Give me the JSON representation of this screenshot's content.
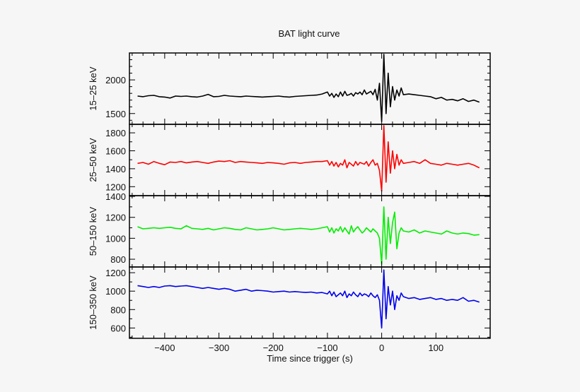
{
  "chart_data": {
    "type": "line",
    "title": "BAT light curve",
    "xlabel": "Time since trigger (s)",
    "xlim": [
      -465,
      200
    ],
    "xticks": [
      -400,
      -300,
      -200,
      -100,
      0,
      100
    ],
    "xtick_labels": [
      "−400",
      "−300",
      "−200",
      "−100",
      "0",
      "100"
    ],
    "grid": false,
    "x": [
      -450,
      -440,
      -430,
      -420,
      -410,
      -400,
      -390,
      -380,
      -370,
      -360,
      -350,
      -340,
      -330,
      -320,
      -310,
      -300,
      -290,
      -280,
      -270,
      -260,
      -250,
      -240,
      -230,
      -220,
      -210,
      -200,
      -190,
      -180,
      -170,
      -160,
      -150,
      -140,
      -130,
      -120,
      -110,
      -100,
      -96,
      -92,
      -88,
      -84,
      -80,
      -76,
      -72,
      -68,
      -64,
      -60,
      -56,
      -52,
      -48,
      -44,
      -40,
      -36,
      -32,
      -28,
      -24,
      -20,
      -16,
      -12,
      -8,
      -4,
      0,
      4,
      8,
      12,
      16,
      20,
      24,
      28,
      32,
      36,
      40,
      50,
      60,
      70,
      80,
      90,
      100,
      110,
      120,
      130,
      140,
      150,
      160,
      170,
      180
    ],
    "panels": [
      {
        "ylabel": "15–25 keV",
        "color": "#000000",
        "ylim": [
          1340,
          2400
        ],
        "yticks": [
          1500,
          2000
        ],
        "values": [
          1760,
          1750,
          1765,
          1770,
          1750,
          1745,
          1730,
          1760,
          1755,
          1760,
          1750,
          1745,
          1760,
          1785,
          1750,
          1755,
          1770,
          1760,
          1755,
          1750,
          1760,
          1755,
          1750,
          1745,
          1750,
          1755,
          1760,
          1750,
          1745,
          1755,
          1760,
          1765,
          1770,
          1775,
          1790,
          1820,
          1760,
          1800,
          1740,
          1790,
          1750,
          1820,
          1760,
          1830,
          1770,
          1780,
          1800,
          1760,
          1810,
          1790,
          1820,
          1780,
          1850,
          1790,
          1810,
          1830,
          1780,
          1860,
          1700,
          1950,
          1380,
          2380,
          1500,
          2100,
          1600,
          1900,
          1700,
          1850,
          1760,
          1880,
          1780,
          1790,
          1780,
          1770,
          1760,
          1750,
          1720,
          1740,
          1700,
          1710,
          1690,
          1720,
          1680,
          1700,
          1670
        ]
      },
      {
        "ylabel": "25–50 keV",
        "color": "#ff0000",
        "ylim": [
          1100,
          1895
        ],
        "yticks": [
          1200,
          1400,
          1600,
          1800
        ],
        "values": [
          1460,
          1470,
          1450,
          1480,
          1460,
          1445,
          1475,
          1470,
          1480,
          1465,
          1475,
          1480,
          1470,
          1460,
          1475,
          1485,
          1480,
          1490,
          1470,
          1480,
          1475,
          1470,
          1465,
          1460,
          1470,
          1465,
          1460,
          1450,
          1465,
          1470,
          1460,
          1470,
          1475,
          1480,
          1480,
          1490,
          1440,
          1480,
          1430,
          1470,
          1420,
          1460,
          1440,
          1500,
          1410,
          1470,
          1450,
          1430,
          1480,
          1440,
          1470,
          1460,
          1450,
          1480,
          1430,
          1470,
          1500,
          1440,
          1460,
          1380,
          1150,
          1880,
          1250,
          1700,
          1350,
          1600,
          1400,
          1560,
          1440,
          1500,
          1460,
          1470,
          1480,
          1460,
          1500,
          1460,
          1450,
          1440,
          1460,
          1450,
          1440,
          1450,
          1460,
          1440,
          1410
        ]
      },
      {
        "ylabel": "50–150 keV",
        "color": "#00ee00",
        "ylim": [
          726,
          1407
        ],
        "yticks": [
          800,
          1000,
          1200,
          1400
        ],
        "values": [
          1110,
          1090,
          1095,
          1100,
          1095,
          1100,
          1105,
          1095,
          1090,
          1120,
          1095,
          1090,
          1085,
          1095,
          1080,
          1090,
          1100,
          1095,
          1085,
          1080,
          1100,
          1090,
          1080,
          1085,
          1090,
          1100,
          1090,
          1080,
          1085,
          1090,
          1095,
          1090,
          1085,
          1090,
          1100,
          1110,
          1060,
          1100,
          1050,
          1090,
          1070,
          1110,
          1060,
          1100,
          1070,
          1040,
          1120,
          1060,
          1090,
          1110,
          1080,
          1050,
          1070,
          1100,
          1080,
          1060,
          1090,
          1070,
          1050,
          1000,
          750,
          1300,
          800,
          1200,
          950,
          1150,
          1250,
          900,
          1050,
          1100,
          1070,
          1060,
          1080,
          1050,
          1070,
          1060,
          1050,
          1040,
          1070,
          1050,
          1040,
          1050,
          1045,
          1030,
          1035
        ]
      },
      {
        "ylabel": "150–350 keV",
        "color": "#0000ee",
        "ylim": [
          488,
          1262
        ],
        "yticks": [
          600,
          800,
          1000,
          1200
        ],
        "values": [
          1060,
          1050,
          1040,
          1050,
          1040,
          1055,
          1060,
          1050,
          1055,
          1060,
          1050,
          1040,
          1030,
          1040,
          1030,
          1020,
          1030,
          1020,
          1000,
          1010,
          1020,
          1000,
          1010,
          1005,
          1000,
          990,
          995,
          1000,
          990,
          995,
          990,
          985,
          990,
          980,
          985,
          970,
          1000,
          950,
          990,
          940,
          960,
          980,
          950,
          1000,
          930,
          970,
          950,
          990,
          960,
          940,
          980,
          950,
          970,
          960,
          940,
          980,
          950,
          930,
          960,
          900,
          600,
          1230,
          700,
          1050,
          850,
          1000,
          800,
          950,
          900,
          980,
          940,
          920,
          930,
          910,
          920,
          930,
          910,
          920,
          900,
          910,
          900,
          930,
          890,
          900,
          880
        ]
      }
    ]
  }
}
